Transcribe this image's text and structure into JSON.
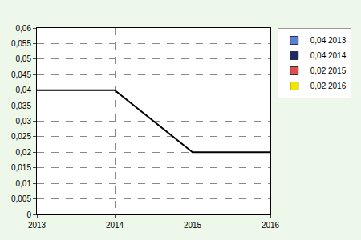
{
  "chart_data": {
    "type": "line",
    "x": [
      2013,
      2014,
      2015,
      2016
    ],
    "series": [
      {
        "color": "#000000",
        "values": [
          0.04,
          0.04,
          0.02,
          0.02
        ]
      }
    ],
    "xlim": [
      2013,
      2016
    ],
    "xticks": [
      2013,
      2014,
      2015,
      2016
    ],
    "ylim": [
      0,
      0.06
    ],
    "yticks": [
      0,
      {
        "value": 0.005,
        "label": "0,005"
      },
      {
        "value": 0.01,
        "label": "0,01"
      },
      {
        "value": 0.015,
        "label": "0,015"
      },
      {
        "value": 0.02,
        "label": "0,02"
      },
      {
        "value": 0.025,
        "label": "0,025"
      },
      {
        "value": 0.03,
        "label": "0,03"
      },
      {
        "value": 0.035,
        "label": "0,035"
      },
      {
        "value": 0.04,
        "label": "0,04"
      },
      {
        "value": 0.045,
        "label": "0,045"
      },
      {
        "value": 0.05,
        "label": "0,05"
      },
      {
        "value": 0.055,
        "label": "0,055"
      },
      {
        "value": 0.06,
        "label": "0,06"
      }
    ],
    "grid": true,
    "legend": "upper right",
    "legend_items": [
      {
        "label": "0,04 2013",
        "color": "#5b7fd6"
      },
      {
        "label": "0,04 2014",
        "color": "#1c2a6b"
      },
      {
        "label": "0,02 2015",
        "color": "#e0504a"
      },
      {
        "label": "0,02 2016",
        "color": "#f2e600"
      }
    ]
  }
}
